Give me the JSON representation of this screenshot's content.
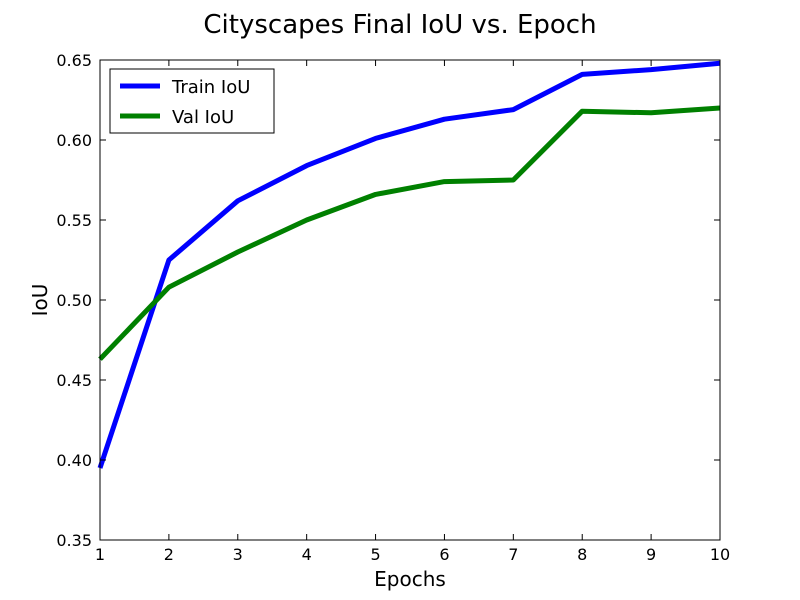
{
  "chart_data": {
    "type": "line",
    "title": "Cityscapes Final IoU vs. Epoch",
    "xlabel": "Epochs",
    "ylabel": "IoU",
    "x": [
      1,
      2,
      3,
      4,
      5,
      6,
      7,
      8,
      9,
      10
    ],
    "xlim": [
      1,
      10
    ],
    "ylim": [
      0.35,
      0.65
    ],
    "xticks": [
      "1",
      "2",
      "3",
      "4",
      "5",
      "6",
      "7",
      "8",
      "9",
      "10"
    ],
    "yticks": [
      "0.35",
      "0.40",
      "0.45",
      "0.50",
      "0.55",
      "0.60",
      "0.65"
    ],
    "grid": false,
    "legend_position": "top-left",
    "series": [
      {
        "name": "Train IoU",
        "color": "#0000ff",
        "values": [
          0.395,
          0.525,
          0.562,
          0.584,
          0.601,
          0.613,
          0.619,
          0.641,
          0.644,
          0.648
        ]
      },
      {
        "name": "Val IoU",
        "color": "#008000",
        "values": [
          0.463,
          0.508,
          0.53,
          0.55,
          0.566,
          0.574,
          0.575,
          0.618,
          0.617,
          0.62
        ]
      }
    ]
  }
}
